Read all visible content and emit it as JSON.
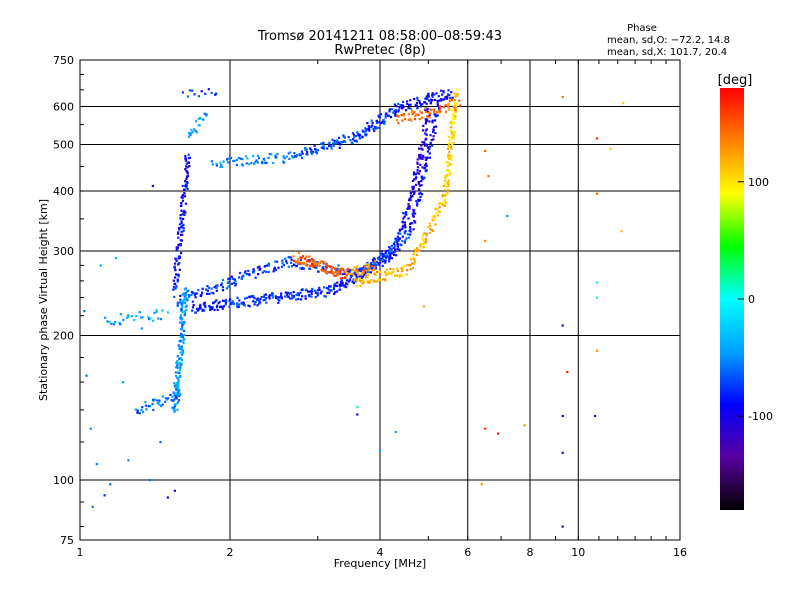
{
  "chart_data": {
    "type": "scatter",
    "title": "Tromsø 20141211 08:58:00–08:59:43",
    "subtitle": "RwPretec (8p)",
    "xlabel": "Frequency [MHz]",
    "ylabel": "Stationary phase Virtual Height [km]",
    "x_scale": "log",
    "y_scale": "log",
    "xlim": [
      1,
      16
    ],
    "ylim": [
      75,
      750
    ],
    "x_ticks": [
      1,
      2,
      4,
      6,
      8,
      10,
      16
    ],
    "y_ticks": [
      75,
      100,
      200,
      300,
      400,
      500,
      600,
      750
    ],
    "grid": true,
    "stats": {
      "heading": "Phase",
      "line1": "mean, sd,O: −72.2, 14.8",
      "line2": "mean, sd,X: 101.7, 20.4"
    },
    "colorbar": {
      "label": "[deg]",
      "ticks": [
        100,
        0,
        -100
      ],
      "range": [
        -180,
        180
      ],
      "colors": [
        "#000000",
        "#5a00a0",
        "#0000ff",
        "#00a0ff",
        "#00ffff",
        "#00ff00",
        "#ffff00",
        "#ff8000",
        "#ff0000"
      ]
    },
    "traces": [
      {
        "f0": 1.68,
        "f1": 1.92,
        "h0": 228,
        "h1": 232,
        "phase": -90,
        "n": 40
      },
      {
        "f0": 1.92,
        "f1": 3.2,
        "h0": 232,
        "h1": 248,
        "phase": -80,
        "n": 140
      },
      {
        "f0": 3.2,
        "f1": 4.3,
        "h0": 248,
        "h1": 300,
        "phase": -88,
        "n": 110
      },
      {
        "f0": 4.3,
        "f1": 4.8,
        "h0": 300,
        "h1": 450,
        "phase": -100,
        "n": 70
      },
      {
        "f0": 4.8,
        "f1": 5.05,
        "h0": 450,
        "h1": 630,
        "phase": -105,
        "n": 50
      },
      {
        "f0": 1.55,
        "f1": 2.6,
        "h0": 235,
        "h1": 285,
        "phase": -75,
        "n": 110
      },
      {
        "f0": 2.6,
        "f1": 3.7,
        "h0": 285,
        "h1": 270,
        "phase": -78,
        "n": 70
      },
      {
        "f0": 3.7,
        "f1": 4.6,
        "h0": 270,
        "h1": 330,
        "phase": -70,
        "n": 70
      },
      {
        "f0": 4.6,
        "f1": 5.3,
        "h0": 330,
        "h1": 630,
        "phase": -95,
        "n": 90
      },
      {
        "f0": 3.55,
        "f1": 4.6,
        "h0": 258,
        "h1": 276,
        "phase": 115,
        "n": 70
      },
      {
        "f0": 4.6,
        "f1": 5.4,
        "h0": 276,
        "h1": 390,
        "phase": 112,
        "n": 70
      },
      {
        "f0": 5.4,
        "f1": 5.7,
        "h0": 390,
        "h1": 640,
        "phase": 105,
        "n": 110
      },
      {
        "f0": 2.7,
        "f1": 3.4,
        "h0": 292,
        "h1": 268,
        "phase": 150,
        "n": 90
      },
      {
        "f0": 3.4,
        "f1": 3.9,
        "h0": 268,
        "h1": 280,
        "phase": 135,
        "n": 35
      },
      {
        "f0": 1.85,
        "f1": 2.7,
        "h0": 455,
        "h1": 472,
        "phase": -50,
        "n": 60
      },
      {
        "f0": 2.7,
        "f1": 3.6,
        "h0": 472,
        "h1": 520,
        "phase": -72,
        "n": 80
      },
      {
        "f0": 3.6,
        "f1": 4.4,
        "h0": 520,
        "h1": 600,
        "phase": -80,
        "n": 80
      },
      {
        "f0": 4.4,
        "f1": 5.6,
        "h0": 600,
        "h1": 640,
        "phase": -88,
        "n": 60
      },
      {
        "f0": 4.3,
        "f1": 5.8,
        "h0": 560,
        "h1": 610,
        "phase": 140,
        "n": 60
      },
      {
        "f0": 1.55,
        "f1": 1.63,
        "h0": 140,
        "h1": 250,
        "phase": -45,
        "n": 150
      },
      {
        "f0": 1.3,
        "f1": 1.6,
        "h0": 140,
        "h1": 150,
        "phase": -60,
        "n": 40
      },
      {
        "f0": 1.55,
        "f1": 1.65,
        "h0": 250,
        "h1": 480,
        "phase": -90,
        "n": 110
      },
      {
        "f0": 1.12,
        "f1": 1.5,
        "h0": 215,
        "h1": 222,
        "phase": -40,
        "n": 30
      },
      {
        "f0": 1.65,
        "f1": 1.8,
        "h0": 520,
        "h1": 580,
        "phase": -45,
        "n": 20
      },
      {
        "f0": 1.6,
        "f1": 1.9,
        "h0": 635,
        "h1": 650,
        "phase": -70,
        "n": 12
      }
    ],
    "points": [
      {
        "x": 9.3,
        "y": 628,
        "phase": 140
      },
      {
        "x": 10.9,
        "y": 515,
        "phase": 160
      },
      {
        "x": 9.3,
        "y": 210,
        "phase": -110
      },
      {
        "x": 9.5,
        "y": 168,
        "phase": 170
      },
      {
        "x": 9.3,
        "y": 136,
        "phase": -110
      },
      {
        "x": 9.3,
        "y": 114,
        "phase": -110
      },
      {
        "x": 9.3,
        "y": 80,
        "phase": -110
      },
      {
        "x": 10.8,
        "y": 136,
        "phase": -120
      },
      {
        "x": 10.9,
        "y": 258,
        "phase": -10
      },
      {
        "x": 10.9,
        "y": 240,
        "phase": 10
      },
      {
        "x": 10.9,
        "y": 186,
        "phase": 130
      },
      {
        "x": 11.6,
        "y": 490,
        "phase": 110
      },
      {
        "x": 12.3,
        "y": 610,
        "phase": 110
      },
      {
        "x": 12.2,
        "y": 330,
        "phase": 110
      },
      {
        "x": 10.9,
        "y": 395,
        "phase": 145
      },
      {
        "x": 6.5,
        "y": 485,
        "phase": 150
      },
      {
        "x": 6.6,
        "y": 430,
        "phase": 140
      },
      {
        "x": 6.5,
        "y": 315,
        "phase": 130
      },
      {
        "x": 6.5,
        "y": 128,
        "phase": 160
      },
      {
        "x": 6.9,
        "y": 125,
        "phase": 170
      },
      {
        "x": 7.8,
        "y": 130,
        "phase": 130
      },
      {
        "x": 6.4,
        "y": 98,
        "phase": 130
      },
      {
        "x": 7.2,
        "y": 355,
        "phase": -50
      },
      {
        "x": 3.6,
        "y": 142,
        "phase": 10
      },
      {
        "x": 3.6,
        "y": 137,
        "phase": -110
      },
      {
        "x": 4.3,
        "y": 126,
        "phase": -40
      },
      {
        "x": 4.0,
        "y": 115,
        "phase": -40
      },
      {
        "x": 4.9,
        "y": 230,
        "phase": 120
      },
      {
        "x": 2.05,
        "y": 260,
        "phase": -60
      },
      {
        "x": 1.4,
        "y": 410,
        "phase": -100
      },
      {
        "x": 1.12,
        "y": 93,
        "phase": -80
      },
      {
        "x": 1.03,
        "y": 165,
        "phase": -60
      },
      {
        "x": 1.05,
        "y": 128,
        "phase": -50
      },
      {
        "x": 1.08,
        "y": 108,
        "phase": -55
      },
      {
        "x": 1.15,
        "y": 98,
        "phase": -60
      },
      {
        "x": 1.22,
        "y": 160,
        "phase": -45
      },
      {
        "x": 1.25,
        "y": 110,
        "phase": -50
      },
      {
        "x": 1.1,
        "y": 280,
        "phase": -40
      },
      {
        "x": 1.18,
        "y": 290,
        "phase": -40
      },
      {
        "x": 1.02,
        "y": 225,
        "phase": -60
      },
      {
        "x": 1.33,
        "y": 207,
        "phase": -50
      },
      {
        "x": 1.5,
        "y": 92,
        "phase": -100
      },
      {
        "x": 1.55,
        "y": 95,
        "phase": -110
      },
      {
        "x": 1.06,
        "y": 88,
        "phase": -60
      },
      {
        "x": 1.45,
        "y": 120,
        "phase": -60
      },
      {
        "x": 1.38,
        "y": 100,
        "phase": -60
      }
    ]
  }
}
